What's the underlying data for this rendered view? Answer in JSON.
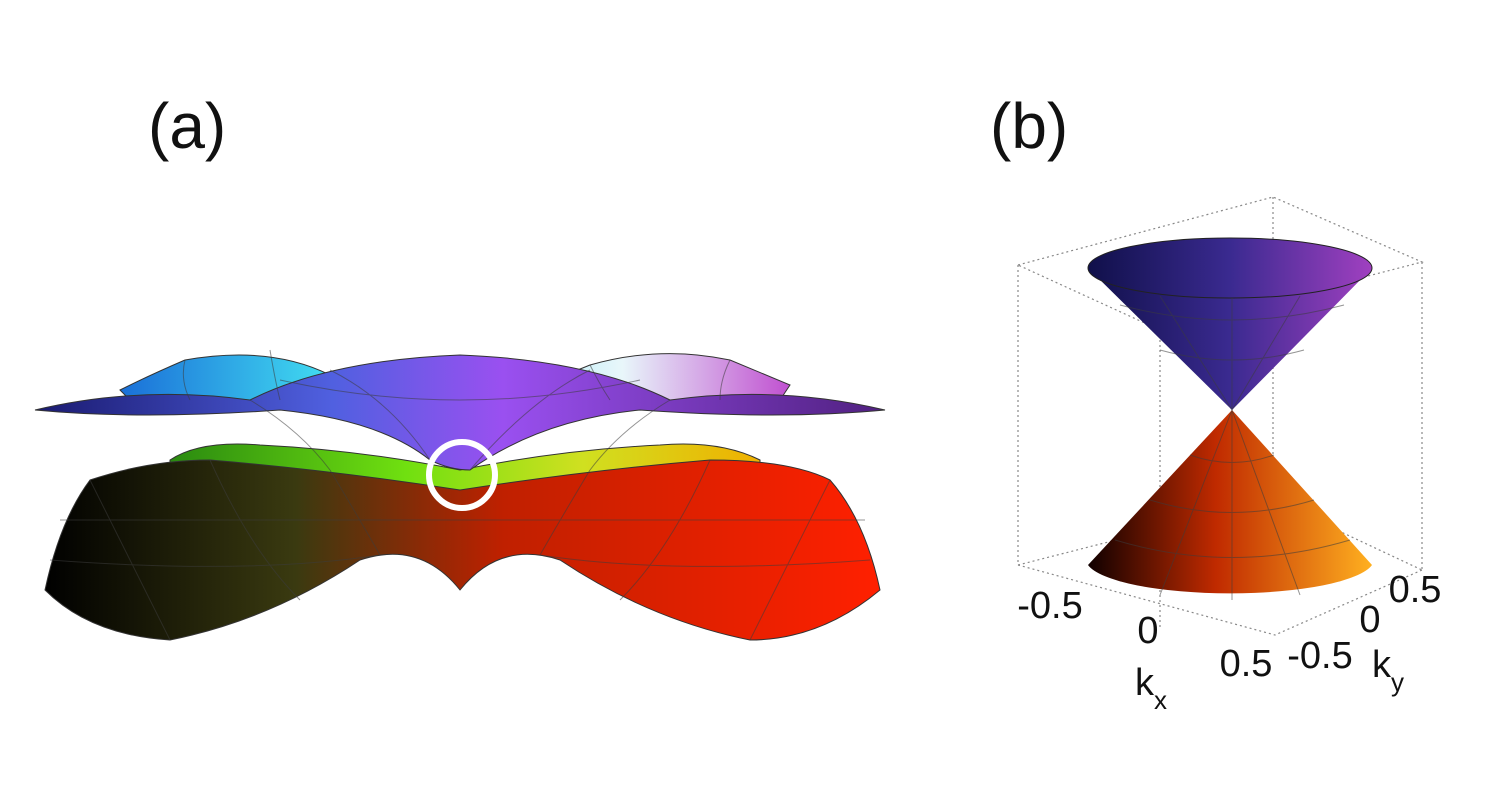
{
  "panels": {
    "a": {
      "label": "(a)"
    },
    "b": {
      "label": "(b)",
      "kx_ticks": [
        -0.5,
        0,
        0.5
      ],
      "ky_ticks": [
        -0.5,
        0,
        0.5
      ],
      "kx_label": {
        "base": "k",
        "sub": "x"
      },
      "ky_label": {
        "base": "k",
        "sub": "y"
      }
    }
  }
}
